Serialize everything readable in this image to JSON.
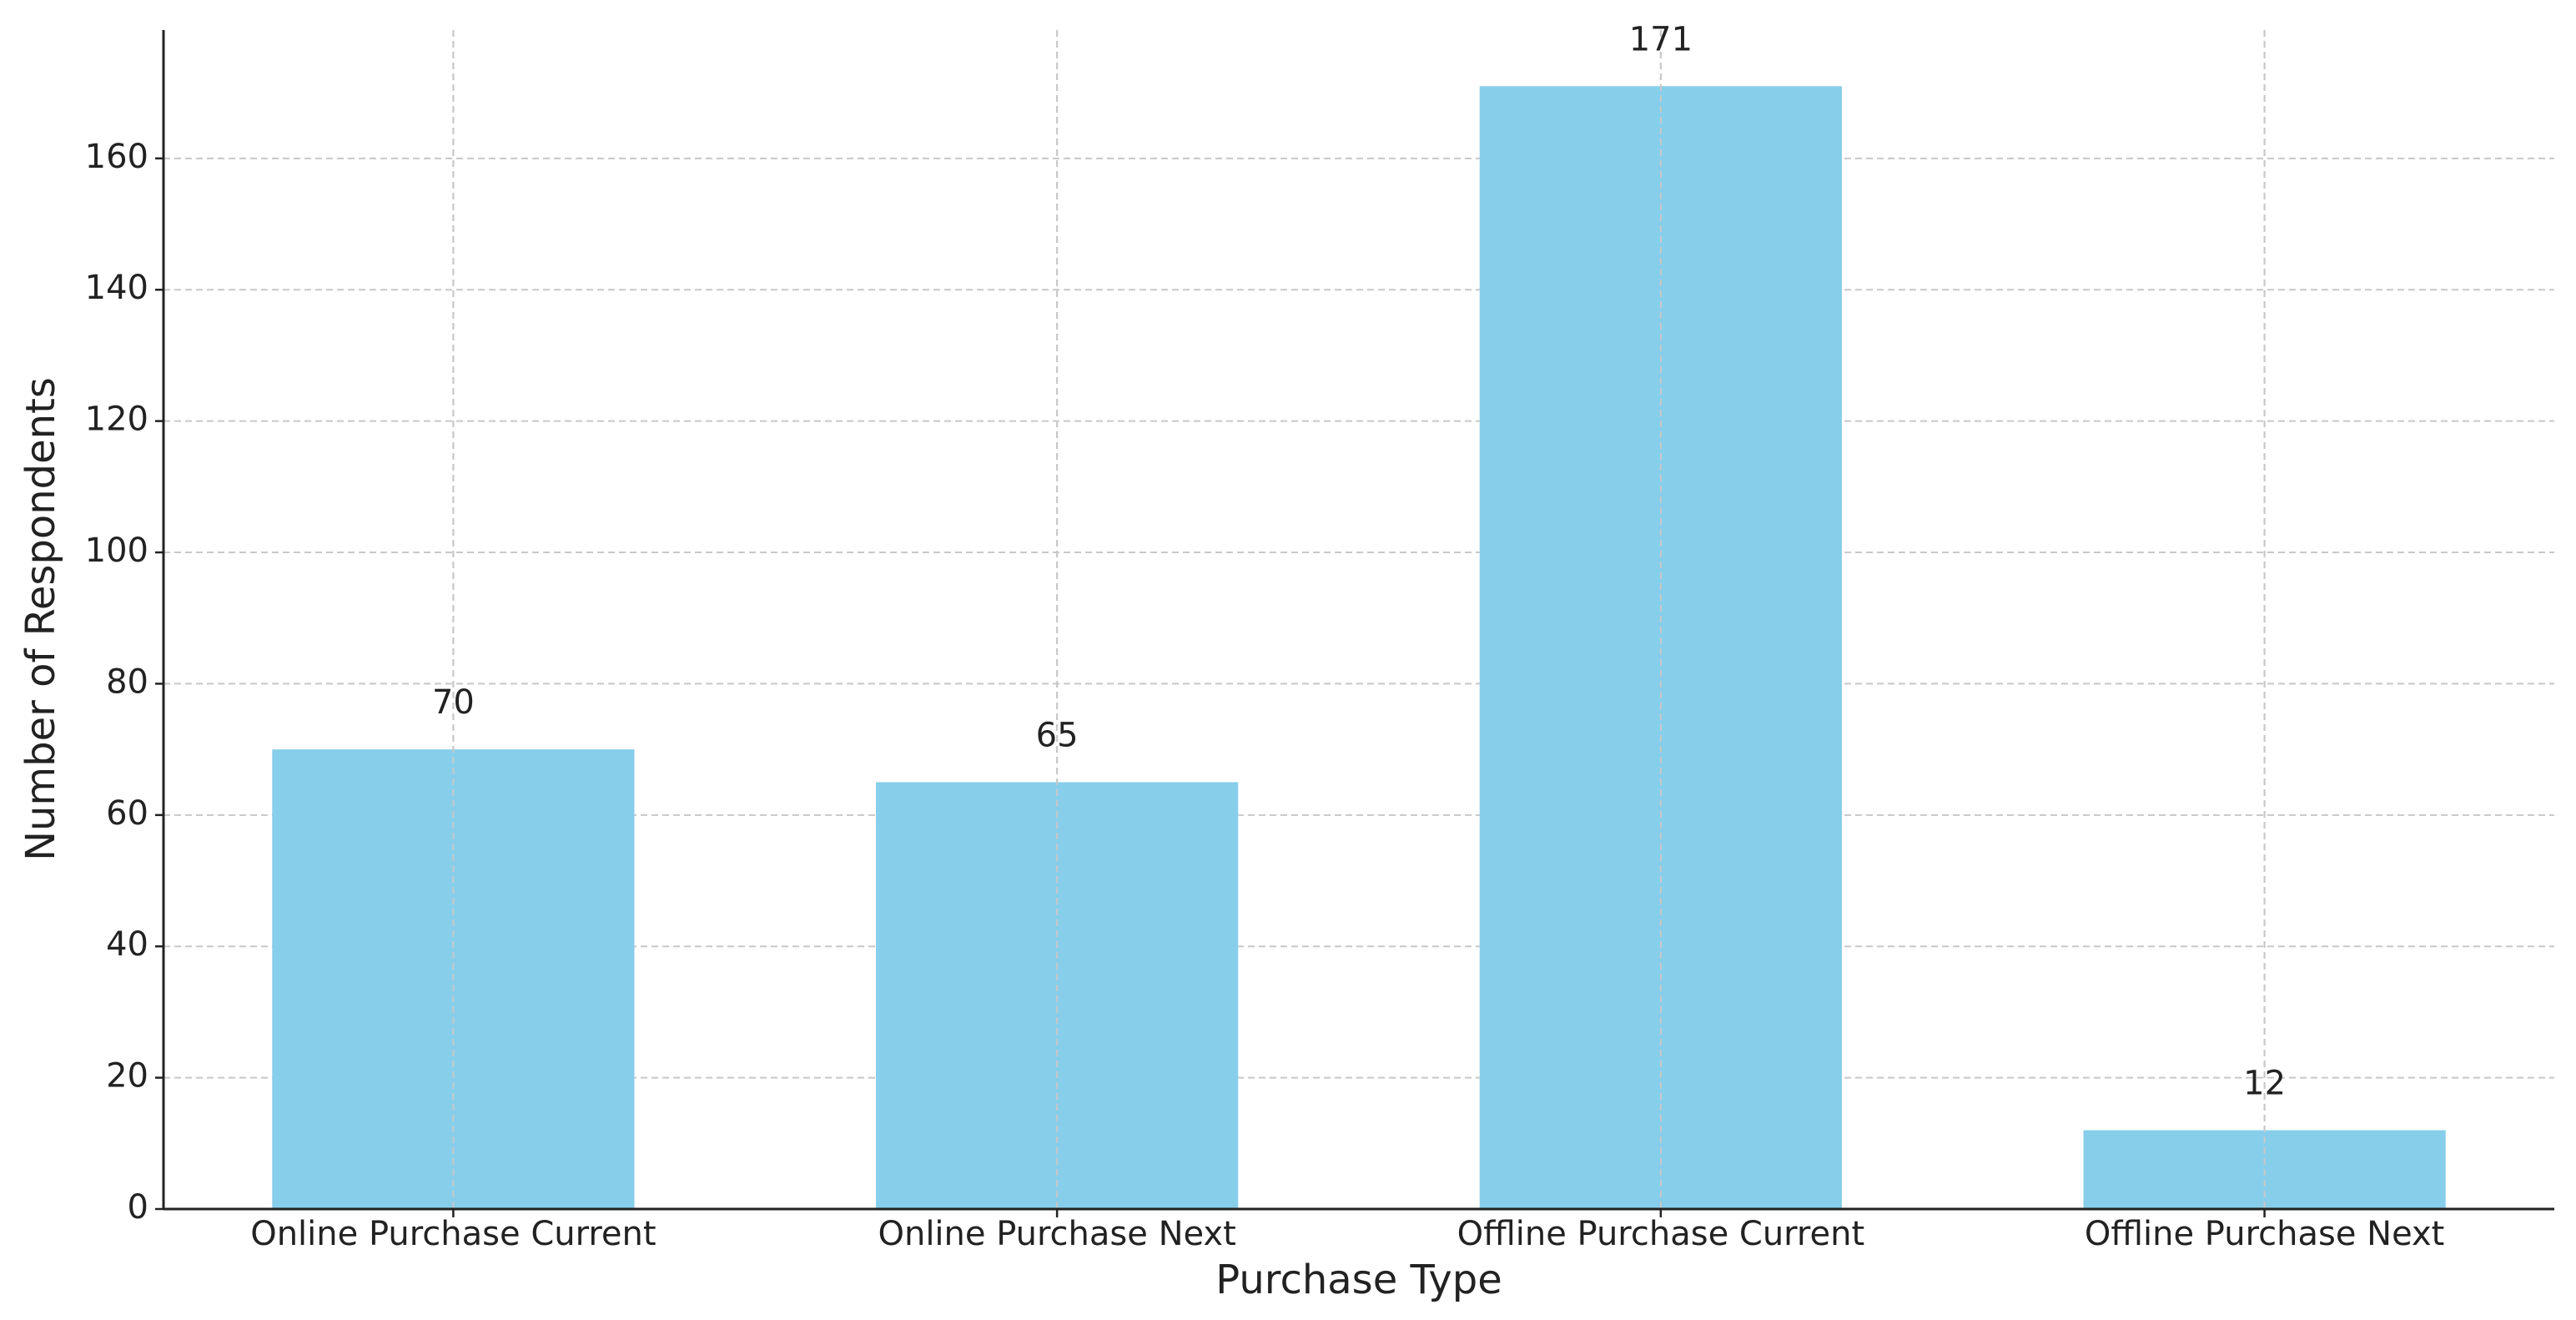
{
  "chart_data": {
    "type": "bar",
    "x_label": "Purchase Type",
    "y_label": "Number of Respondents",
    "categories": [
      "Online Purchase Current",
      "Online Purchase Next",
      "Offline Purchase Current",
      "Offline Purchase Next"
    ],
    "values": [
      70,
      65,
      171,
      12
    ],
    "color": "#87ceeb",
    "ylim": [
      0,
      179.55
    ],
    "yticks": [
      0,
      20,
      40,
      60,
      80,
      100,
      120,
      140,
      160
    ],
    "grid": true
  }
}
